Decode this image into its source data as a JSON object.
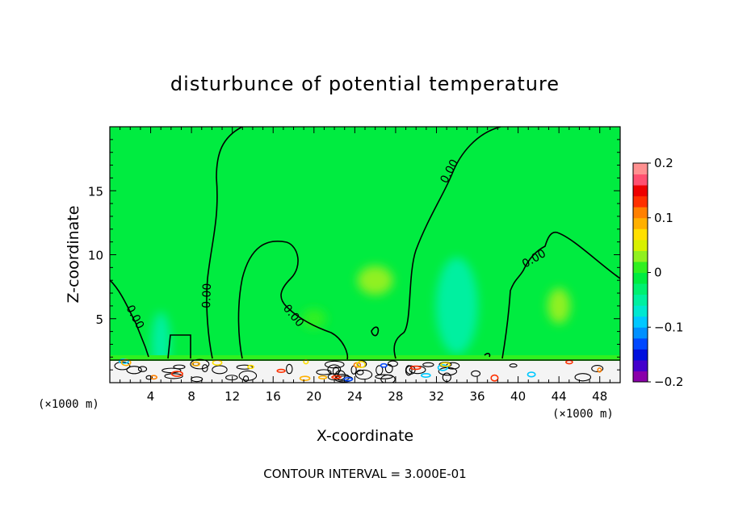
{
  "chart_data": {
    "type": "heatmap",
    "title": "disturbunce of potential temperature",
    "xlabel": "X-coordinate",
    "ylabel": "Z-coordinate",
    "x_unit_left": "(×1000 m)",
    "x_unit_right": "(×1000 m)",
    "xlim": [
      0,
      50
    ],
    "ylim": [
      0,
      20
    ],
    "x_ticks": [
      "4",
      "8",
      "12",
      "16",
      "20",
      "24",
      "28",
      "32",
      "36",
      "40",
      "44",
      "48"
    ],
    "y_ticks": [
      "5",
      "10",
      "15"
    ],
    "footnote": "CONTOUR INTERVAL = 3.000E-01",
    "contour_label": "0.00",
    "colorbar": {
      "ticks": [
        "0.2",
        "0.1",
        "0",
        "−0.1",
        "−0.2"
      ],
      "range": [
        -0.2,
        0.2
      ],
      "colors": [
        "#8a00aa",
        "#4400cc",
        "#0010dd",
        "#0048ff",
        "#0090ff",
        "#00c8ff",
        "#00e8d0",
        "#00f0a0",
        "#00f070",
        "#00ec40",
        "#30f020",
        "#90f020",
        "#d8f000",
        "#ffe000",
        "#ffb000",
        "#ff8000",
        "#ff3000",
        "#ee0000",
        "#ff5070",
        "#ff9090"
      ]
    },
    "background_level": 0.0,
    "features": [
      {
        "x": 26,
        "z": 8,
        "level": 0.03
      },
      {
        "x": 20,
        "z": 5,
        "level": 0.02
      },
      {
        "x": 34,
        "z": 6,
        "level": -0.04
      },
      {
        "x": 5,
        "z": 3,
        "level": -0.05
      },
      {
        "x": 44,
        "z": 6,
        "level": 0.03
      }
    ]
  }
}
